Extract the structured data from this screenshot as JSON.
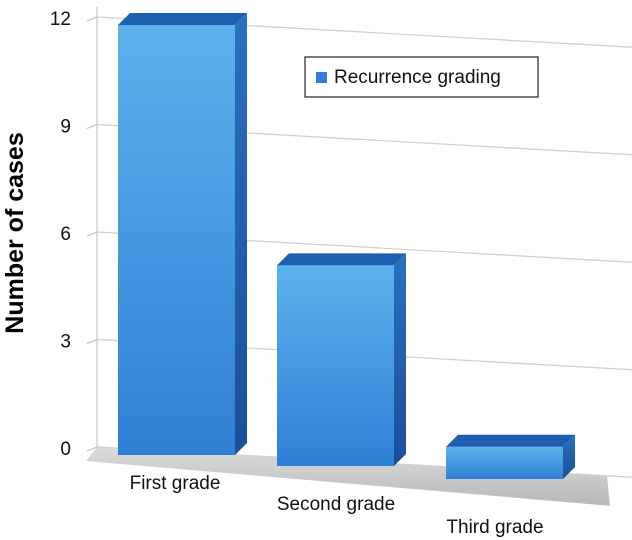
{
  "chart_data": {
    "type": "bar",
    "categories": [
      "First grade",
      "Second grade",
      "Third grade"
    ],
    "series": [
      {
        "name": "Recurrence grading",
        "values": [
          12,
          5.6,
          0.9
        ]
      }
    ],
    "ylabel": "Number of cases",
    "xlabel": "",
    "ylim": [
      0,
      12
    ],
    "yticks": [
      0,
      3,
      6,
      9,
      12
    ],
    "grid": true,
    "legend_position": "top-right",
    "style": "3d-column",
    "colors": {
      "bar": "#3a93e0",
      "bar_light": "#5cb2ec",
      "bar_dark": "#1f5fb0",
      "floor": "#c9c9c9",
      "grid": "#d0d0d0"
    }
  }
}
